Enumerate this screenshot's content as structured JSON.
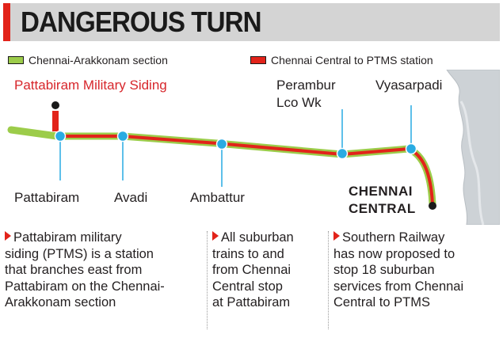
{
  "header": {
    "title": "DANGEROUS TURN",
    "accent_color": "#e2231a"
  },
  "legend": [
    {
      "label": "Chennai-Arakkonam section",
      "color": "#9ccc4a"
    },
    {
      "label": "Chennai Central to PTMS station",
      "color": "#e2231a"
    }
  ],
  "map": {
    "stations": {
      "pattabiram": "Pattabiram",
      "avadi": "Avadi",
      "ambattur": "Ambattur",
      "perambur_line1": "Perambur",
      "perambur_line2": "Lco Wk",
      "vyasarpadi": "Vyasarpadi",
      "ptms": "Pattabiram Military Siding",
      "chennai_line1": "CHENNAI",
      "chennai_line2": "CENTRAL"
    },
    "colors": {
      "track_green": "#9ccc4a",
      "track_red": "#e2231a",
      "station_dot": "#29abe2",
      "terminal_dot": "#1a1a1a",
      "sea": "#cdd2d6"
    }
  },
  "notes": [
    {
      "lines": [
        "Pattabiram military",
        "siding (PTMS) is a station",
        "that branches east from",
        "Pattabiram on the Chennai-",
        "Arakkonam section"
      ]
    },
    {
      "lines": [
        "All suburban",
        "trains to and",
        "from Chennai",
        "Central stop",
        "at Pattabiram"
      ]
    },
    {
      "lines": [
        "Southern Railway",
        "has now proposed to",
        "stop 18 suburban",
        "services from Chennai",
        "Central to PTMS"
      ]
    }
  ]
}
